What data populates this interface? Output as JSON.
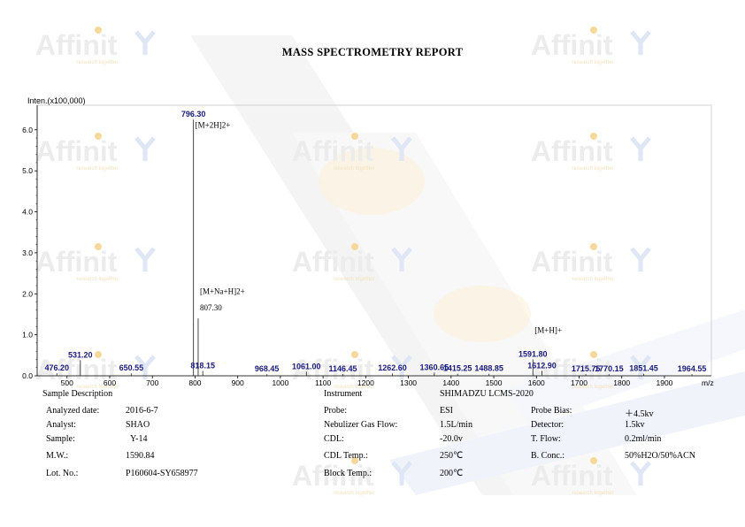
{
  "report": {
    "title": "MASS SPECTROMETRY REPORT",
    "watermark_brand": "Affinit",
    "watermark_sub": "research together"
  },
  "chart_data": {
    "type": "line",
    "ylabel": "Inten.(x100,000)",
    "xlabel": "m/z",
    "xlim": [
      430,
      2010
    ],
    "ylim": [
      0,
      6.6
    ],
    "x_ticks": [
      "500",
      "600",
      "700",
      "800",
      "900",
      "1000",
      "1100",
      "1200",
      "1300",
      "1400",
      "1500",
      "1600",
      "1700",
      "1800",
      "1900"
    ],
    "y_ticks": [
      "0.0",
      "1.0",
      "2.0",
      "3.0",
      "4.0",
      "5.0",
      "6.0"
    ],
    "peaks": [
      {
        "mz": 476.2,
        "i": 0.06,
        "label": "476.20"
      },
      {
        "mz": 531.2,
        "i": 0.38,
        "label": "531.20"
      },
      {
        "mz": 650.55,
        "i": 0.06,
        "label": "650.55"
      },
      {
        "mz": 796.3,
        "i": 6.25,
        "label": "796.30"
      },
      {
        "mz": 807.3,
        "i": 1.4,
        "label": ""
      },
      {
        "mz": 818.15,
        "i": 0.12,
        "label": "818.15"
      },
      {
        "mz": 968.45,
        "i": 0.04,
        "label": "968.45"
      },
      {
        "mz": 1061.0,
        "i": 0.1,
        "label": "1061.00"
      },
      {
        "mz": 1146.45,
        "i": 0.04,
        "label": "1146.45"
      },
      {
        "mz": 1262.6,
        "i": 0.06,
        "label": "1262.60"
      },
      {
        "mz": 1360.65,
        "i": 0.08,
        "label": "1360.65"
      },
      {
        "mz": 1415.25,
        "i": 0.05,
        "label": "1415.25"
      },
      {
        "mz": 1488.85,
        "i": 0.05,
        "label": "1488.85"
      },
      {
        "mz": 1591.8,
        "i": 0.4,
        "label": "1591.80"
      },
      {
        "mz": 1612.9,
        "i": 0.12,
        "label": "1612.90"
      },
      {
        "mz": 1715.75,
        "i": 0.04,
        "label": "1715.75"
      },
      {
        "mz": 1770.15,
        "i": 0.04,
        "label": "1770.15"
      },
      {
        "mz": 1851.45,
        "i": 0.05,
        "label": "1851.45"
      },
      {
        "mz": 1964.55,
        "i": 0.04,
        "label": "1964.55"
      }
    ],
    "annotations": [
      {
        "text": "[M+2H]2+",
        "mz": 796.3,
        "i": 6.05
      },
      {
        "text": "[M+Na+H]2+",
        "mz": 807.3,
        "i": 2.0
      },
      {
        "text": "807.30",
        "mz": 807.3,
        "i": 1.6
      },
      {
        "text": "[M+H]+",
        "mz": 1591.8,
        "i": 1.05
      }
    ]
  },
  "sample": {
    "heading": "Sample Description",
    "analyzed_date_label": "Analyzed date:",
    "analyzed_date": "2016-6-7",
    "analyst_label": "Analyst:",
    "analyst": "SHAO",
    "sample_label": "Sample:",
    "sample": "Y-14",
    "mw_label": "M.W.:",
    "mw": "1590.84",
    "lot_label": "Lot. No.:",
    "lot": "P160604-SY658977"
  },
  "instrument": {
    "heading": "Instrument",
    "name": "SHIMADZU LCMS-2020",
    "probe_label": "Probe:",
    "probe": "ESI",
    "nebulizer_label": "Nebulizer Gas Flow:",
    "nebulizer": "1.5L/min",
    "cdl_label": "CDL:",
    "cdl": "-20.0v",
    "cdl_temp_label": "CDL Temp.:",
    "cdl_temp": "250℃",
    "block_temp_label": "Block Temp.:",
    "block_temp": "200℃",
    "probe_bias_label": "Probe Bias:",
    "probe_bias": "＋4.5kv",
    "detector_label": "Detector:",
    "detector": "1.5kv",
    "tflow_label": "T. Flow:",
    "tflow": "0.2ml/min",
    "bconc_label": "B. Conc.:",
    "bconc": "50%H2O/50%ACN"
  },
  "colors": {
    "peak_label": "#1a1a7a",
    "watermark_grey": "#ececec",
    "watermark_orange": "#f7d89a",
    "watermark_blue": "#dfe6f5"
  }
}
